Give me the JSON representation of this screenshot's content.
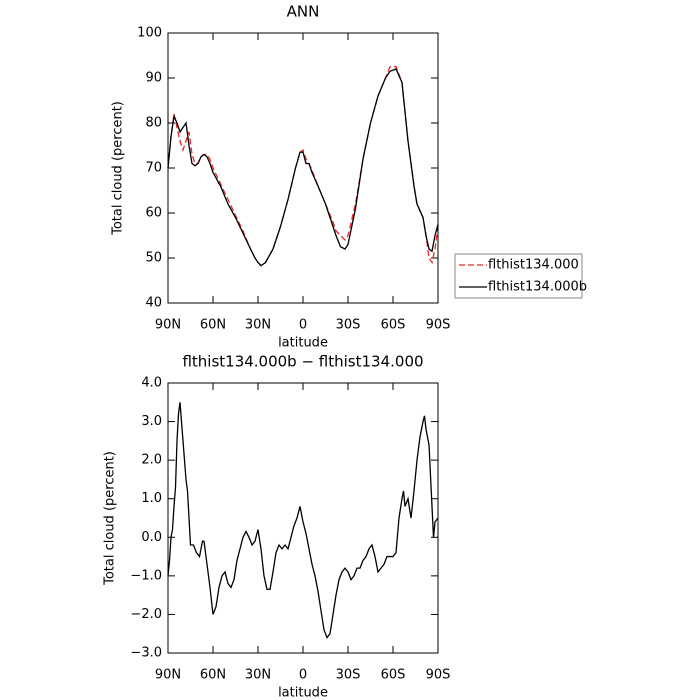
{
  "chart_data": [
    {
      "type": "line",
      "title": "ANN",
      "y_label": "Total cloud (percent)",
      "x_label": "latitude",
      "xlim": [
        90,
        -90
      ],
      "ylim": [
        40,
        100
      ],
      "xticks": [
        {
          "value": 90,
          "label": "90N"
        },
        {
          "value": 60,
          "label": "60N"
        },
        {
          "value": 30,
          "label": "30N"
        },
        0,
        {
          "value": -30,
          "label": "30S"
        },
        {
          "value": -60,
          "label": "60S"
        },
        {
          "value": -90,
          "label": "90S"
        }
      ],
      "yticks": [
        40,
        50,
        60,
        70,
        80,
        90,
        100
      ],
      "legend": "right",
      "series": [
        {
          "name": "flthist134.000",
          "color": "#e8262b",
          "line_style": "dashed",
          "x": [
            90,
            88,
            86,
            84,
            82,
            80,
            78,
            76,
            74,
            72,
            70,
            68,
            66,
            64,
            62,
            60,
            55,
            50,
            45,
            40,
            35,
            32,
            30,
            28,
            25,
            20,
            15,
            10,
            5,
            2,
            0,
            -2,
            -4,
            -6,
            -10,
            -15,
            -20,
            -22,
            -25,
            -28,
            -30,
            -35,
            -40,
            -45,
            -50,
            -55,
            -58,
            -62,
            -66,
            -70,
            -74,
            -76,
            -80,
            -82,
            -84,
            -86,
            -88,
            -90
          ],
          "values": [
            70,
            77,
            82,
            79,
            76,
            74,
            76,
            78,
            73,
            71,
            71,
            72.5,
            73,
            73,
            72,
            70,
            66.5,
            63,
            59.5,
            56,
            52,
            50,
            49,
            48.3,
            49,
            52,
            57,
            63,
            70,
            73.5,
            74,
            72,
            71,
            69.5,
            66,
            62,
            58,
            56,
            55,
            54,
            55,
            62,
            72,
            80,
            86,
            90,
            92.5,
            92.5,
            89,
            76,
            66,
            62,
            59,
            55,
            50,
            49,
            52,
            57
          ]
        },
        {
          "name": "flthist134.000b",
          "color": "#000000",
          "line_style": "solid",
          "x": [
            90,
            88,
            86,
            84,
            82,
            80,
            78,
            76,
            74,
            72,
            70,
            68,
            66,
            64,
            62,
            60,
            55,
            50,
            45,
            40,
            35,
            32,
            30,
            28,
            25,
            20,
            15,
            10,
            5,
            2,
            0,
            -2,
            -4,
            -6,
            -10,
            -15,
            -20,
            -22,
            -25,
            -28,
            -30,
            -35,
            -40,
            -45,
            -50,
            -55,
            -58,
            -62,
            -66,
            -70,
            -74,
            -76,
            -80,
            -82,
            -84,
            -86,
            -88,
            -90
          ],
          "values": [
            70,
            77,
            81.5,
            80,
            78,
            79,
            80,
            75,
            71,
            70.5,
            71,
            72.5,
            73,
            72.5,
            71,
            69,
            66,
            62,
            59,
            55.5,
            52,
            50,
            49,
            48.3,
            49,
            52,
            57,
            63,
            70,
            73.5,
            73.5,
            71,
            71,
            69,
            66,
            62,
            57,
            55,
            52.5,
            52,
            53,
            61,
            72,
            80,
            86,
            90,
            91.5,
            92,
            89,
            76,
            66,
            62,
            59,
            55,
            52,
            51.5,
            55,
            57.5
          ]
        }
      ]
    },
    {
      "type": "line",
      "title": "flthist134.000b − flthist134.000",
      "y_label": "Total cloud (percent)",
      "x_label": "latitude",
      "xlim": [
        90,
        -90
      ],
      "ylim": [
        -3,
        4
      ],
      "xticks": [
        {
          "value": 90,
          "label": "90N"
        },
        {
          "value": 60,
          "label": "60N"
        },
        {
          "value": 30,
          "label": "30N"
        },
        0,
        {
          "value": -30,
          "label": "30S"
        },
        {
          "value": -60,
          "label": "60S"
        },
        {
          "value": -90,
          "label": "90S"
        }
      ],
      "yticks": [
        {
          "value": -3,
          "label": "−3.0"
        },
        {
          "value": -2,
          "label": "−2.0"
        },
        {
          "value": -1,
          "label": "−1.0"
        },
        {
          "value": 0,
          "label": "0.0"
        },
        {
          "value": 1,
          "label": "1.0"
        },
        {
          "value": 2,
          "label": "2.0"
        },
        {
          "value": 3,
          "label": "3.0"
        },
        {
          "value": 4,
          "label": "4.0"
        }
      ],
      "series": [
        {
          "color": "#000000",
          "line_style": "solid",
          "x": [
            90,
            89,
            88,
            87,
            86,
            85,
            84,
            83,
            82,
            81,
            80,
            79,
            78,
            77,
            76,
            75,
            73,
            71,
            69,
            67,
            66,
            64,
            62,
            60,
            58,
            56,
            54,
            52,
            50,
            48,
            46,
            44,
            42,
            40,
            38,
            36,
            34,
            32,
            30,
            28,
            26,
            24,
            22,
            20,
            18,
            16,
            14,
            12,
            10,
            8,
            6,
            4,
            2,
            0,
            -2,
            -4,
            -6,
            -8,
            -10,
            -12,
            -14,
            -16,
            -18,
            -20,
            -22,
            -24,
            -26,
            -28,
            -30,
            -32,
            -34,
            -36,
            -38,
            -40,
            -42,
            -44,
            -46,
            -48,
            -50,
            -52,
            -54,
            -56,
            -58,
            -60,
            -62,
            -64,
            -66,
            -67,
            -68,
            -70,
            -72,
            -74,
            -76,
            -78,
            -80,
            -81,
            -82,
            -84,
            -86,
            -87,
            -88,
            -90
          ],
          "values": [
            -1.0,
            -0.6,
            0.0,
            0.2,
            0.8,
            1.3,
            2.5,
            3.2,
            3.5,
            3.0,
            2.5,
            2.0,
            1.5,
            1.2,
            0.5,
            -0.2,
            -0.2,
            -0.4,
            -0.5,
            -0.1,
            -0.1,
            -0.7,
            -1.3,
            -2.0,
            -1.8,
            -1.3,
            -1.0,
            -0.9,
            -1.2,
            -1.3,
            -1.1,
            -0.6,
            -0.3,
            0.0,
            0.15,
            0.0,
            -0.2,
            -0.1,
            0.2,
            -0.3,
            -1.0,
            -1.35,
            -1.35,
            -0.9,
            -0.4,
            -0.2,
            -0.3,
            -0.2,
            -0.3,
            0.0,
            0.3,
            0.5,
            0.8,
            0.4,
            0.1,
            -0.3,
            -0.7,
            -1.0,
            -1.4,
            -1.9,
            -2.4,
            -2.6,
            -2.5,
            -2.0,
            -1.5,
            -1.1,
            -0.9,
            -0.8,
            -0.9,
            -1.1,
            -1.0,
            -0.8,
            -0.8,
            -0.6,
            -0.5,
            -0.3,
            -0.2,
            -0.5,
            -0.9,
            -0.8,
            -0.7,
            -0.5,
            -0.5,
            -0.5,
            -0.4,
            0.5,
            1.0,
            1.2,
            0.8,
            1.0,
            0.5,
            1.2,
            2.0,
            2.6,
            3.0,
            3.15,
            2.8,
            2.4,
            0.8,
            0.0,
            0.4,
            0.5
          ]
        }
      ]
    }
  ]
}
